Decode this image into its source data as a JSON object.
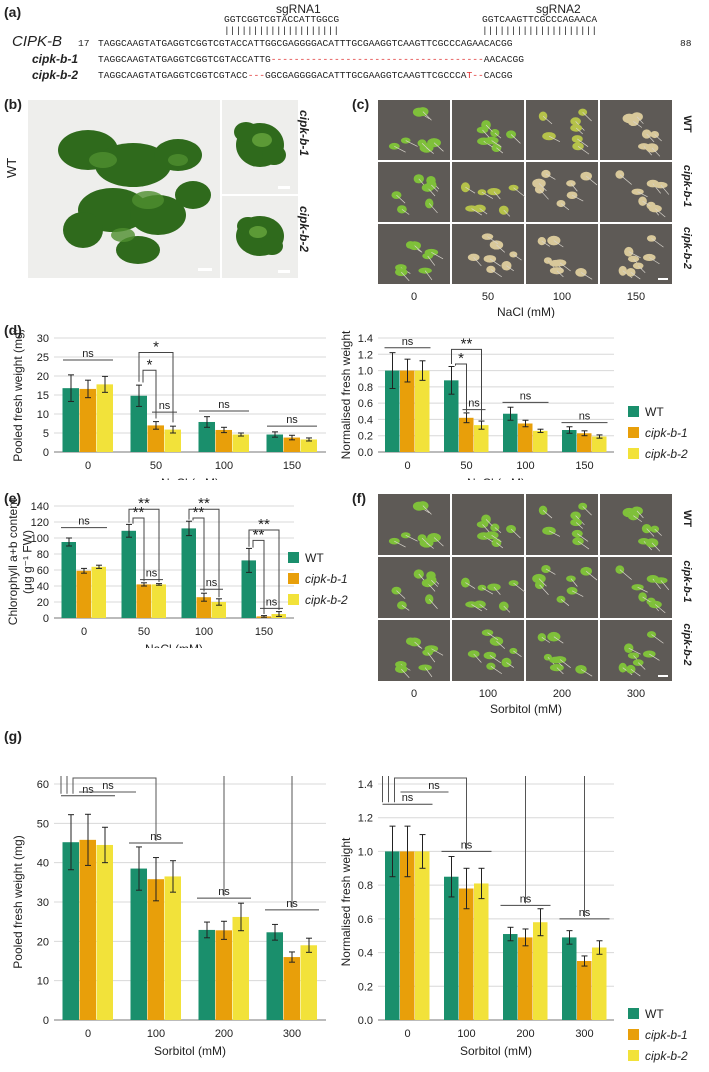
{
  "panels": {
    "a": "(a)",
    "b": "(b)",
    "c": "(c)",
    "d": "(d)",
    "e": "(e)",
    "f": "(f)",
    "g": "(g)"
  },
  "colors": {
    "wt": "#1a8f6c",
    "cipk1": "#e89f0a",
    "cipk2": "#f2e23a",
    "red": "#e03030",
    "photo_bg": "#5e5a56"
  },
  "sequences": {
    "sgRNA1_label": "sgRNA1",
    "sgRNA2_label": "sgRNA2",
    "sgRNA1_seq": "GGTCGGTCGTACCATTGGCG",
    "sgRNA2_seq": "GGTCAAGTTCGCCCAGAACA",
    "bars1": "||||||||||||||||||||",
    "bars2": "||||||||||||||||||||",
    "gene": "CIPK-B",
    "start": "17",
    "end": "88",
    "ref": "TAGGCAAGTATGAGGTCGGTCGTACCATTGGCGAGGGGACATTTGCGAAGGTCAAGTTCGCCCAGAACACGG",
    "m1_name": "cipk-b-1",
    "m1_a": "TAGGCAAGTATGAGGTCGGTCGTACCATTG",
    "m1_gap": "-------------------------------------",
    "m1_b": "AACACGG",
    "m2_name": "cipk-b-2",
    "m2_a": "TAGGCAAGTATGAGGTCGGTCGTACC",
    "m2_gap": "---",
    "m2_b": "GGCGAGGGGACATTTGCGAAGGTCAAGTTCGCCCA",
    "m2_c": "T--",
    "m2_d": "CACGG"
  },
  "photos": {
    "b_wt": "WT",
    "b_m1": "cipk-b-1",
    "b_m2": "cipk-b-2",
    "c_rows": [
      "WT",
      "cipk-b-1",
      "cipk-b-2"
    ],
    "c_cols": [
      "0",
      "50",
      "100",
      "150"
    ],
    "c_xlabel": "NaCl (mM)",
    "f_rows": [
      "WT",
      "cipk-b-1",
      "cipk-b-2"
    ],
    "f_cols": [
      "0",
      "100",
      "200",
      "300"
    ],
    "f_xlabel": "Sorbitol (mM)"
  },
  "legend": [
    "WT",
    "cipk-b-1",
    "cipk-b-2"
  ],
  "chart_data": [
    {
      "id": "d1",
      "type": "bar",
      "categories": [
        "0",
        "50",
        "100",
        "150"
      ],
      "series": [
        {
          "name": "WT",
          "values": [
            16.8,
            14.8,
            7.9,
            4.6
          ],
          "err": [
            3.5,
            2.8,
            1.4,
            0.7
          ]
        },
        {
          "name": "cipk-b-1",
          "values": [
            16.6,
            7.0,
            5.8,
            3.8
          ],
          "err": [
            2.3,
            1.0,
            0.7,
            0.6
          ]
        },
        {
          "name": "cipk-b-2",
          "values": [
            17.8,
            5.9,
            4.6,
            3.3
          ],
          "err": [
            2.1,
            0.9,
            0.4,
            0.4
          ]
        }
      ],
      "xlabel": "NaCl (mM)",
      "ylabel": "Pooled fresh weight (mg)",
      "ylim": [
        0,
        30
      ],
      "yticks": [
        "0",
        "5",
        "10",
        "15",
        "20",
        "25",
        "30"
      ],
      "annotations": [
        "ns",
        "*",
        "*",
        "ns",
        "ns",
        "ns"
      ]
    },
    {
      "id": "d2",
      "type": "bar",
      "categories": [
        "0",
        "50",
        "100",
        "150"
      ],
      "series": [
        {
          "name": "WT",
          "values": [
            1.0,
            0.88,
            0.47,
            0.27
          ],
          "err": [
            0.22,
            0.17,
            0.08,
            0.04
          ]
        },
        {
          "name": "cipk-b-1",
          "values": [
            1.0,
            0.42,
            0.35,
            0.23
          ],
          "err": [
            0.14,
            0.06,
            0.04,
            0.03
          ]
        },
        {
          "name": "cipk-b-2",
          "values": [
            1.0,
            0.33,
            0.26,
            0.19
          ],
          "err": [
            0.12,
            0.05,
            0.02,
            0.02
          ]
        }
      ],
      "xlabel": "NaCl (mM)",
      "ylabel": "Normalised fresh weight",
      "ylim": [
        0,
        1.4
      ],
      "yticks": [
        "0.0",
        "0.2",
        "0.4",
        "0.6",
        "0.8",
        "1.0",
        "1.2",
        "1.4"
      ],
      "annotations": [
        "ns",
        "**",
        "*",
        "ns",
        "ns",
        "ns"
      ]
    },
    {
      "id": "e",
      "type": "bar",
      "categories": [
        "0",
        "50",
        "100",
        "150"
      ],
      "series": [
        {
          "name": "WT",
          "values": [
            95,
            109,
            112,
            72
          ],
          "err": [
            5,
            8,
            9,
            15
          ]
        },
        {
          "name": "cipk-b-1",
          "values": [
            59,
            42,
            26,
            2
          ],
          "err": [
            3,
            2,
            5,
            1
          ]
        },
        {
          "name": "cipk-b-2",
          "values": [
            64,
            42,
            20,
            5
          ],
          "err": [
            2,
            1,
            4,
            3
          ]
        }
      ],
      "xlabel": "NaCl (mM)",
      "ylabel": "Chlorophyll a+b content (μg g⁻¹ FW)",
      "ylim": [
        0,
        140
      ],
      "yticks": [
        "0",
        "20",
        "40",
        "60",
        "80",
        "100",
        "120",
        "140"
      ],
      "annotations": [
        "ns",
        "**",
        "**",
        "ns",
        "**",
        "**",
        "ns",
        "**",
        "**",
        "ns"
      ]
    },
    {
      "id": "g1",
      "type": "bar",
      "categories": [
        "0",
        "100",
        "200",
        "300"
      ],
      "series": [
        {
          "name": "WT",
          "values": [
            45.2,
            38.5,
            22.9,
            22.3
          ],
          "err": [
            7.0,
            5.5,
            2.0,
            2.0
          ]
        },
        {
          "name": "cipk-b-1",
          "values": [
            45.8,
            35.8,
            22.8,
            16.0
          ],
          "err": [
            6.5,
            5.5,
            2.3,
            1.3
          ]
        },
        {
          "name": "cipk-b-2",
          "values": [
            44.5,
            36.5,
            26.2,
            19.0
          ],
          "err": [
            4.5,
            4.0,
            3.5,
            1.8
          ]
        }
      ],
      "xlabel": "Sorbitol (mM)",
      "ylabel": "Pooled fresh weight (mg)",
      "ylim": [
        0,
        60
      ],
      "yticks": [
        "0",
        "10",
        "20",
        "30",
        "40",
        "50",
        "60"
      ],
      "annotations": [
        "**",
        "**",
        "**",
        "**",
        "**",
        "*",
        "ns",
        "ns",
        "ns",
        "ns",
        "ns",
        "ns"
      ]
    },
    {
      "id": "g2",
      "type": "bar",
      "categories": [
        "0",
        "100",
        "200",
        "300"
      ],
      "series": [
        {
          "name": "WT",
          "values": [
            1.0,
            0.85,
            0.51,
            0.49
          ],
          "err": [
            0.15,
            0.12,
            0.04,
            0.04
          ]
        },
        {
          "name": "cipk-b-1",
          "values": [
            1.0,
            0.78,
            0.49,
            0.35
          ],
          "err": [
            0.15,
            0.12,
            0.05,
            0.03
          ]
        },
        {
          "name": "cipk-b-2",
          "values": [
            1.0,
            0.81,
            0.58,
            0.43
          ],
          "err": [
            0.1,
            0.09,
            0.08,
            0.04
          ]
        }
      ],
      "xlabel": "Sorbitol (mM)",
      "ylabel": "Normalised fresh weight",
      "ylim": [
        0,
        1.4
      ],
      "yticks": [
        "0.0",
        "0.2",
        "0.4",
        "0.6",
        "0.8",
        "1.0",
        "1.2",
        "1.4"
      ],
      "annotations": [
        "**",
        "**",
        "**",
        "**",
        "**",
        "*",
        "ns",
        "ns",
        "ns",
        "ns",
        "ns",
        "ns"
      ]
    }
  ]
}
